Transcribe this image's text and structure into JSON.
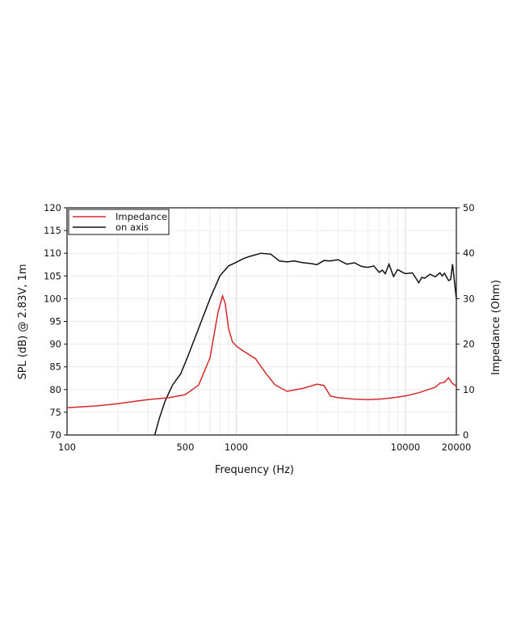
{
  "chart_data": {
    "type": "line",
    "title": "",
    "xlabel": "Frequency (Hz)",
    "ylabel": "SPL (dB) @ 2.83V, 1m",
    "y2label": "Impedance (Ohm)",
    "xscale": "log",
    "xlim": [
      100,
      20000
    ],
    "ylim": [
      70,
      120
    ],
    "y2lim": [
      0,
      50
    ],
    "x_tick_labels": [
      "100",
      "500",
      "1000",
      "10000",
      "20000"
    ],
    "y_tick_labels": [
      "70",
      "75",
      "80",
      "85",
      "90",
      "95",
      "100",
      "105",
      "110",
      "115",
      "120"
    ],
    "y2_tick_labels": [
      "0",
      "10",
      "20",
      "30",
      "40",
      "50"
    ],
    "grid": true,
    "legend_position": "upper-left",
    "legend": [
      "Impedance",
      "on axis"
    ],
    "colors": {
      "Impedance": "#d42a2a",
      "on axis": "#111111"
    },
    "series": [
      {
        "name": "Impedance",
        "axis": "right",
        "unit": "Ohm",
        "x": [
          100,
          150,
          200,
          250,
          300,
          400,
          500,
          600,
          700,
          780,
          830,
          860,
          900,
          950,
          1000,
          1100,
          1300,
          1500,
          1700,
          2000,
          2500,
          3000,
          3300,
          3600,
          4000,
          5000,
          6000,
          7000,
          8000,
          10000,
          12000,
          15000,
          16000,
          17000,
          18000,
          19000,
          20000
        ],
        "values": [
          6.0,
          6.4,
          6.9,
          7.4,
          7.8,
          8.2,
          8.9,
          11.0,
          17.0,
          27.0,
          30.6,
          29.0,
          23.5,
          20.5,
          19.6,
          18.5,
          16.8,
          13.5,
          11.0,
          9.6,
          10.3,
          11.2,
          10.9,
          8.6,
          8.2,
          7.9,
          7.8,
          7.9,
          8.1,
          8.6,
          9.3,
          10.5,
          11.4,
          11.6,
          12.6,
          11.3,
          10.8
        ]
      },
      {
        "name": "on axis",
        "axis": "left",
        "unit": "dB",
        "x": [
          330,
          350,
          380,
          420,
          470,
          520,
          600,
          700,
          800,
          900,
          1000,
          1100,
          1200,
          1400,
          1600,
          1800,
          2000,
          2200,
          2500,
          2800,
          3000,
          3300,
          3600,
          4000,
          4500,
          5000,
          5500,
          6000,
          6500,
          7000,
          7300,
          7600,
          8000,
          8500,
          9000,
          9500,
          10000,
          11000,
          12000,
          12500,
          13000,
          14000,
          15000,
          16000,
          16500,
          17000,
          18000,
          18500,
          19000,
          20000
        ],
        "values": [
          70.0,
          73.5,
          77.5,
          81.0,
          83.5,
          87.5,
          93.5,
          100.0,
          105.0,
          107.2,
          108.0,
          108.8,
          109.3,
          110.0,
          109.8,
          108.3,
          108.1,
          108.3,
          107.9,
          107.7,
          107.5,
          108.4,
          108.3,
          108.6,
          107.6,
          107.9,
          107.1,
          106.9,
          107.2,
          105.8,
          106.3,
          105.5,
          107.6,
          104.9,
          106.4,
          105.9,
          105.5,
          105.7,
          103.5,
          104.7,
          104.5,
          105.4,
          104.8,
          105.7,
          105.0,
          105.6,
          104.0,
          104.2,
          107.6,
          100.0
        ]
      }
    ]
  }
}
